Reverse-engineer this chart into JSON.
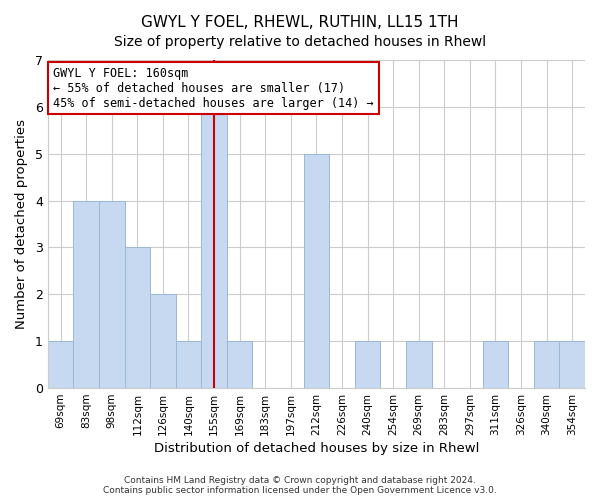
{
  "title": "GWYL Y FOEL, RHEWL, RUTHIN, LL15 1TH",
  "subtitle": "Size of property relative to detached houses in Rhewl",
  "xlabel": "Distribution of detached houses by size in Rhewl",
  "ylabel": "Number of detached properties",
  "footer_line1": "Contains HM Land Registry data © Crown copyright and database right 2024.",
  "footer_line2": "Contains public sector information licensed under the Open Government Licence v3.0.",
  "bins": [
    "69sqm",
    "83sqm",
    "98sqm",
    "112sqm",
    "126sqm",
    "140sqm",
    "155sqm",
    "169sqm",
    "183sqm",
    "197sqm",
    "212sqm",
    "226sqm",
    "240sqm",
    "254sqm",
    "269sqm",
    "283sqm",
    "297sqm",
    "311sqm",
    "326sqm",
    "340sqm",
    "354sqm"
  ],
  "counts": [
    1,
    4,
    4,
    3,
    2,
    1,
    6,
    1,
    0,
    0,
    5,
    0,
    1,
    0,
    1,
    0,
    0,
    1,
    0,
    1,
    1
  ],
  "bar_color": "#c6d9f0",
  "bar_edge_color": "#9ab8d8",
  "vline_x_index": 6,
  "vline_color": "#cc0000",
  "annotation_title": "GWYL Y FOEL: 160sqm",
  "annotation_line1": "← 55% of detached houses are smaller (17)",
  "annotation_line2": "45% of semi-detached houses are larger (14) →",
  "annotation_box_color": "#ffffff",
  "annotation_box_edge_color": "#cc0000",
  "ylim": [
    0,
    7
  ],
  "yticks": [
    0,
    1,
    2,
    3,
    4,
    5,
    6,
    7
  ],
  "background_color": "#ffffff",
  "plot_bg_color": "#ffffff",
  "grid_color": "#cccccc",
  "title_fontsize": 11,
  "subtitle_fontsize": 10
}
